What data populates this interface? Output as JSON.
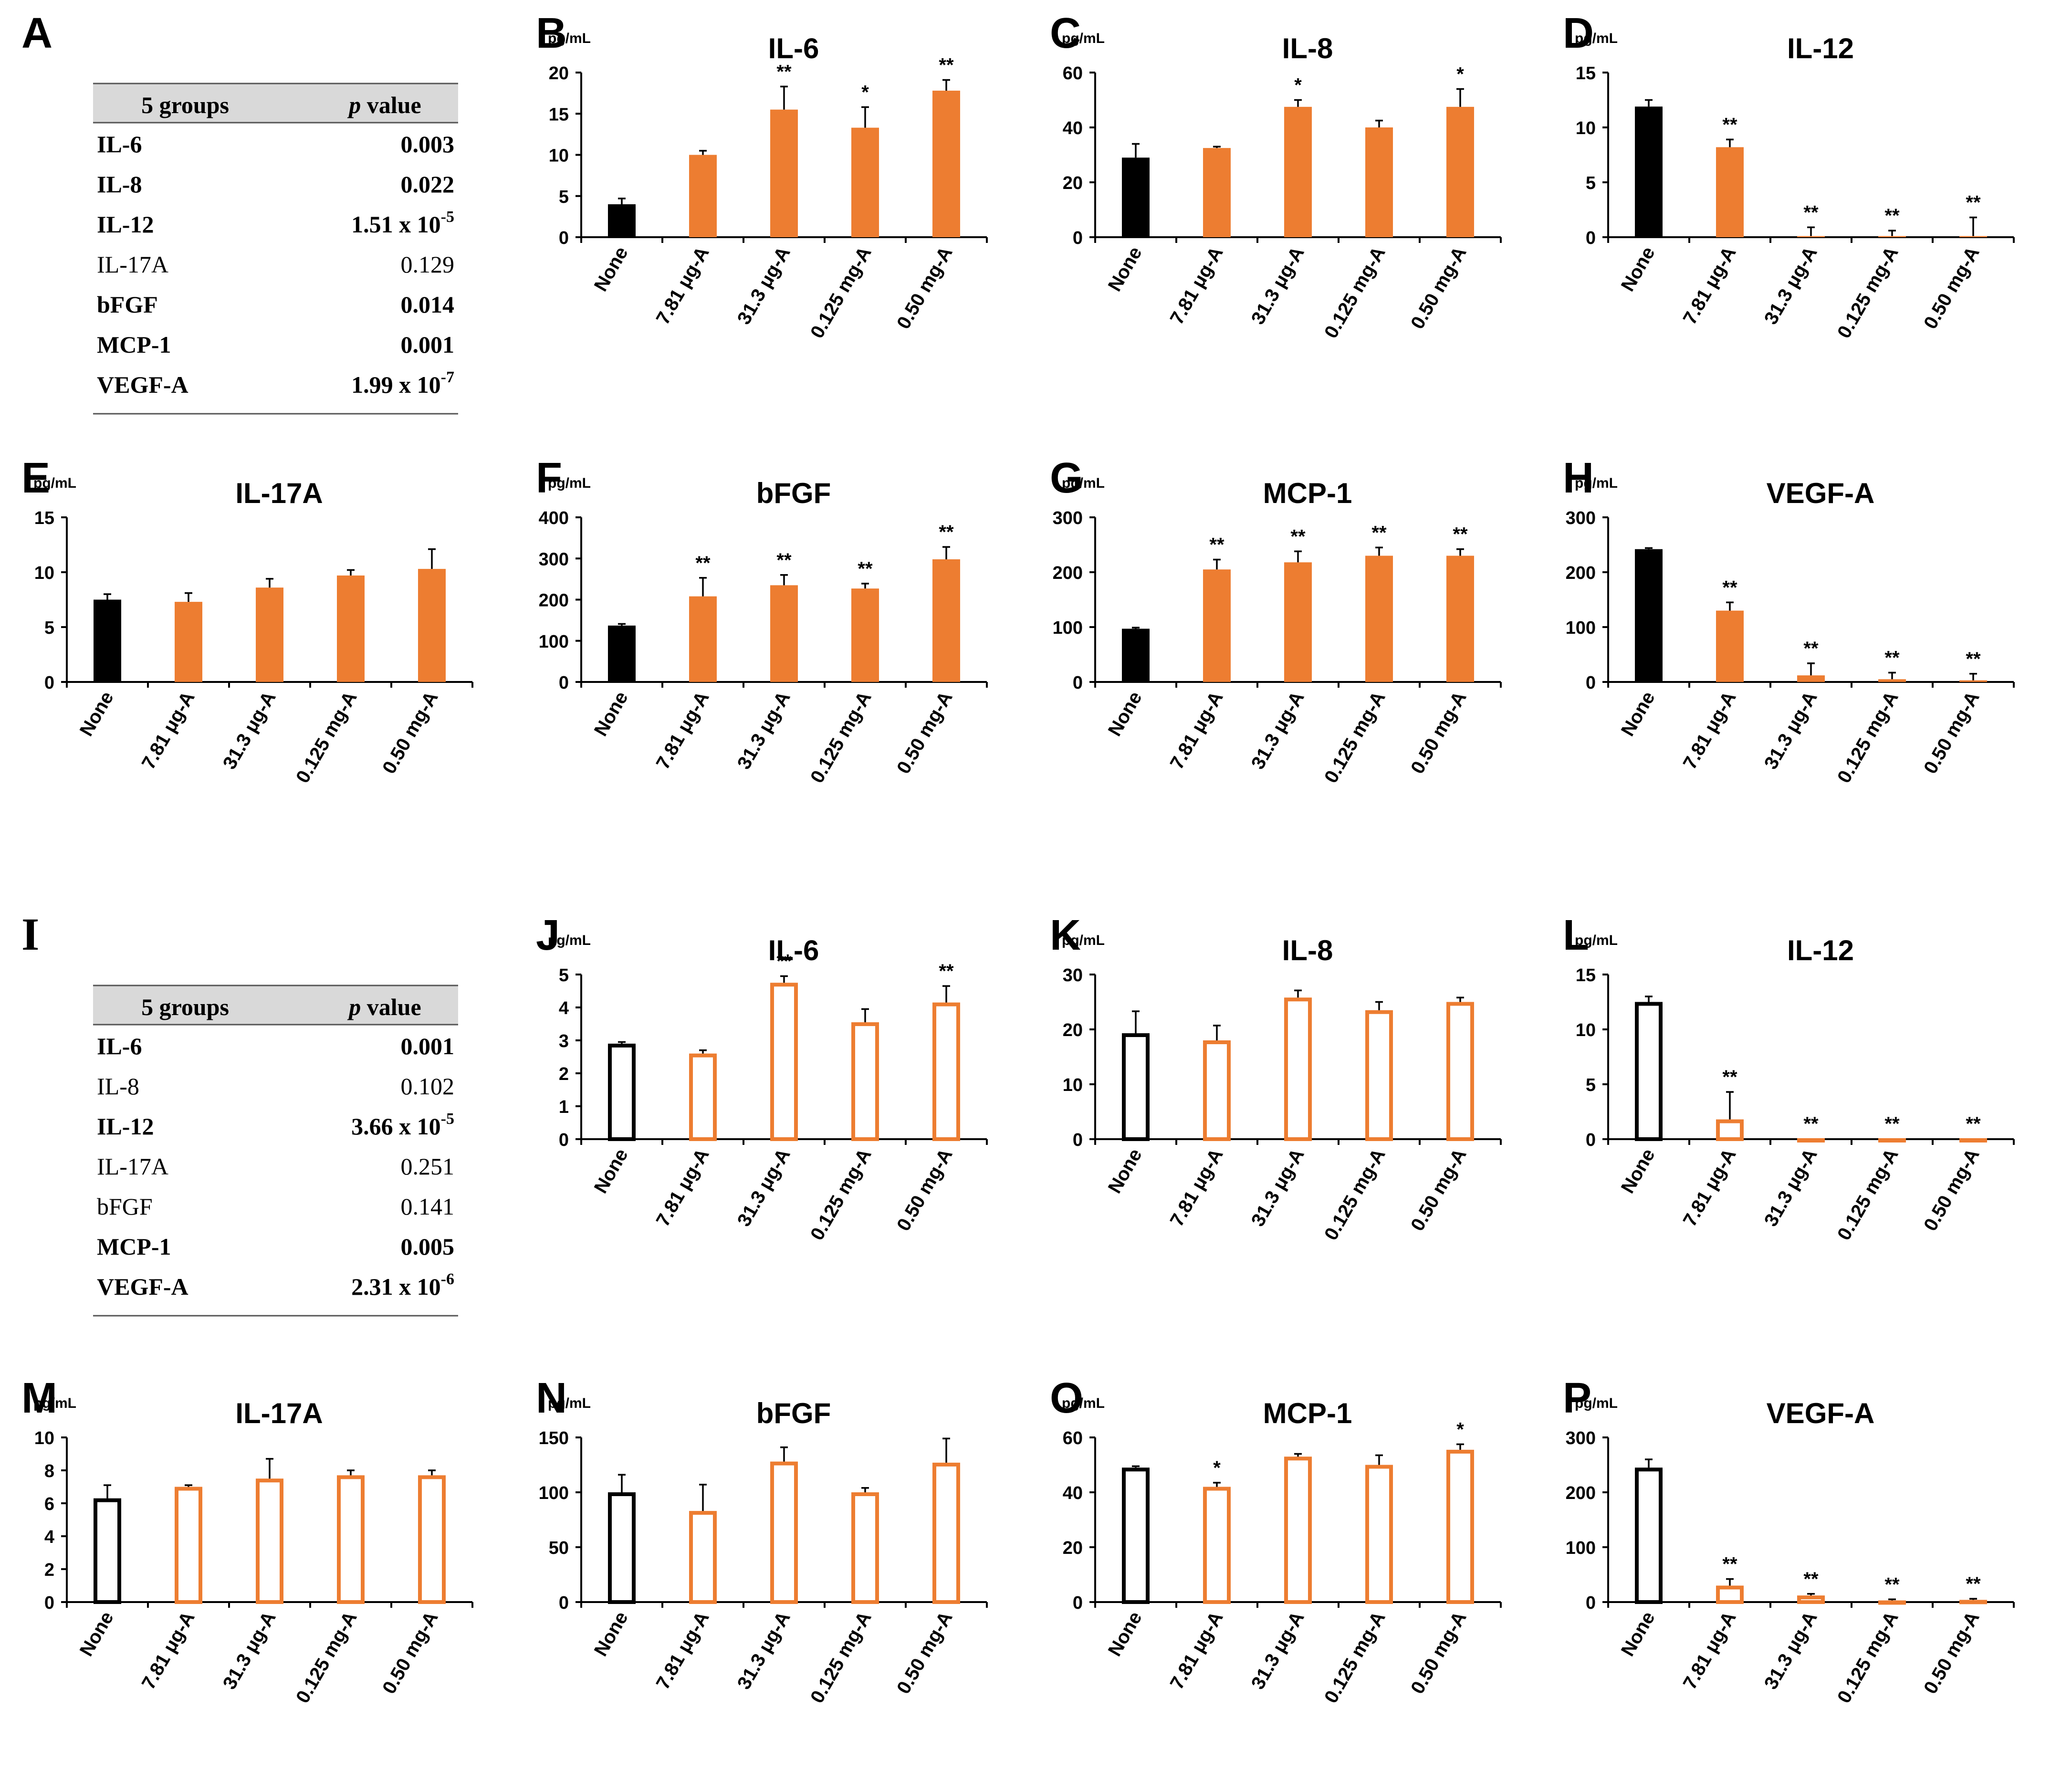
{
  "categories": [
    "None",
    "7.81 μg-A",
    "31.3 μg-A",
    "0.125 mg-A",
    "0.50 mg-A"
  ],
  "unit_label": "pg/mL",
  "colors": {
    "control": "#000000",
    "treated": "#ED7D31",
    "table_header_bg": "#D9D9D9"
  },
  "tables": [
    {
      "panel": "A",
      "header": [
        "5 groups",
        "p",
        "value"
      ],
      "rows": [
        {
          "name": "IL-6",
          "value": "0.003",
          "bold": true
        },
        {
          "name": "IL-8",
          "value": "0.022",
          "bold": true
        },
        {
          "name": "IL-12",
          "value": "1.51 x 10",
          "exp": "-5",
          "bold": true
        },
        {
          "name": "IL-17A",
          "value": "0.129",
          "bold": false
        },
        {
          "name": "bFGF",
          "value": "0.014",
          "bold": true
        },
        {
          "name": "MCP-1",
          "value": "0.001",
          "bold": true
        },
        {
          "name": "VEGF-A",
          "value": "1.99 x 10",
          "exp": "-7",
          "bold": true
        }
      ]
    },
    {
      "panel": "I",
      "header": [
        "5 groups",
        "p",
        "value"
      ],
      "rows": [
        {
          "name": "IL-6",
          "value": "0.001",
          "bold": true
        },
        {
          "name": "IL-8",
          "value": "0.102",
          "bold": false
        },
        {
          "name": "IL-12",
          "value": "3.66 x 10",
          "exp": "-5",
          "bold": true
        },
        {
          "name": "IL-17A",
          "value": "0.251",
          "bold": false
        },
        {
          "name": "bFGF",
          "value": "0.141",
          "bold": false
        },
        {
          "name": "MCP-1",
          "value": "0.005",
          "bold": true
        },
        {
          "name": "VEGF-A",
          "value": "2.31 x 10",
          "exp": "-6",
          "bold": true
        }
      ]
    }
  ],
  "chart_data": [
    {
      "panel": "B",
      "type": "bar",
      "title": "IL-6",
      "ylabel": "pg/mL",
      "ylim": [
        0,
        20
      ],
      "ticks": [
        0,
        5,
        10,
        15,
        20
      ],
      "fill": "solid",
      "categories": [
        "None",
        "7.81 μg-A",
        "31.3 μg-A",
        "0.125 mg-A",
        "0.50 mg-A"
      ],
      "values": [
        4,
        10,
        15.5,
        13.3,
        17.8
      ],
      "errors": [
        0.7,
        0.5,
        2.8,
        2.5,
        1.3
      ],
      "sig": [
        "",
        "",
        "**",
        "*",
        "**"
      ]
    },
    {
      "panel": "C",
      "type": "bar",
      "title": "IL-8",
      "ylabel": "pg/mL",
      "ylim": [
        0,
        60
      ],
      "ticks": [
        0,
        20,
        40,
        60
      ],
      "fill": "solid",
      "categories": [
        "None",
        "7.81 μg-A",
        "31.3 μg-A",
        "0.125 mg-A",
        "0.50 mg-A"
      ],
      "values": [
        29,
        32.5,
        47.5,
        40,
        47.5
      ],
      "errors": [
        5,
        0.5,
        2.5,
        2.5,
        6.5
      ],
      "sig": [
        "",
        "",
        "*",
        "",
        "*"
      ]
    },
    {
      "panel": "D",
      "type": "bar",
      "title": "IL-12",
      "ylabel": "pg/mL",
      "ylim": [
        0,
        15
      ],
      "ticks": [
        0,
        5,
        10,
        15
      ],
      "fill": "solid",
      "categories": [
        "None",
        "7.81 μg-A",
        "31.3 μg-A",
        "0.125 mg-A",
        "0.50 mg-A"
      ],
      "values": [
        11.9,
        8.2,
        0.1,
        0.1,
        0.1
      ],
      "errors": [
        0.6,
        0.7,
        0.8,
        0.5,
        1.7
      ],
      "sig": [
        "",
        "**",
        "**",
        "**",
        "**"
      ]
    },
    {
      "panel": "E",
      "type": "bar",
      "title": "IL-17A",
      "ylabel": "pg/mL",
      "ylim": [
        0,
        15
      ],
      "ticks": [
        0,
        5,
        10,
        15
      ],
      "fill": "solid",
      "categories": [
        "None",
        "7.81 μg-A",
        "31.3 μg-A",
        "0.125 mg-A",
        "0.50 mg-A"
      ],
      "values": [
        7.5,
        7.3,
        8.6,
        9.7,
        10.3
      ],
      "errors": [
        0.5,
        0.8,
        0.8,
        0.5,
        1.8
      ],
      "sig": [
        "",
        "",
        "",
        "",
        ""
      ]
    },
    {
      "panel": "F",
      "type": "bar",
      "title": "bFGF",
      "ylabel": "pg/mL",
      "ylim": [
        0,
        400
      ],
      "ticks": [
        0,
        100,
        200,
        300,
        400
      ],
      "fill": "solid",
      "categories": [
        "None",
        "7.81 μg-A",
        "31.3 μg-A",
        "0.125 mg-A",
        "0.50 mg-A"
      ],
      "values": [
        137,
        208,
        235,
        227,
        298
      ],
      "errors": [
        4,
        45,
        25,
        12,
        30
      ],
      "sig": [
        "",
        "**",
        "**",
        "**",
        "**"
      ]
    },
    {
      "panel": "G",
      "type": "bar",
      "title": "MCP-1",
      "ylabel": "pg/mL",
      "ylim": [
        0,
        300
      ],
      "ticks": [
        0,
        100,
        200,
        300
      ],
      "fill": "solid",
      "categories": [
        "None",
        "7.81 μg-A",
        "31.3 μg-A",
        "0.125 mg-A",
        "0.50 mg-A"
      ],
      "values": [
        97,
        205,
        218,
        230,
        230
      ],
      "errors": [
        2,
        18,
        20,
        15,
        12
      ],
      "sig": [
        "",
        "**",
        "**",
        "**",
        "**"
      ]
    },
    {
      "panel": "H",
      "type": "bar",
      "title": "VEGF-A",
      "ylabel": "pg/mL",
      "ylim": [
        0,
        300
      ],
      "ticks": [
        0,
        100,
        200,
        300
      ],
      "fill": "solid",
      "categories": [
        "None",
        "7.81 μg-A",
        "31.3 μg-A",
        "0.125 mg-A",
        "0.50 mg-A"
      ],
      "values": [
        242,
        130,
        12,
        5,
        3
      ],
      "errors": [
        2,
        15,
        22,
        12,
        12
      ],
      "sig": [
        "",
        "**",
        "**",
        "**",
        "**"
      ]
    },
    {
      "panel": "J",
      "type": "bar",
      "title": "IL-6",
      "ylabel": "pg/mL",
      "ylim": [
        0,
        5
      ],
      "ticks": [
        0,
        1,
        2,
        3,
        4,
        5
      ],
      "fill": "outline",
      "categories": [
        "None",
        "7.81 μg-A",
        "31.3 μg-A",
        "0.125 mg-A",
        "0.50 mg-A"
      ],
      "values": [
        2.9,
        2.6,
        4.75,
        3.55,
        4.15
      ],
      "errors": [
        0.05,
        0.1,
        0.2,
        0.4,
        0.5
      ],
      "sig": [
        "",
        "",
        "**",
        "",
        "**"
      ]
    },
    {
      "panel": "K",
      "type": "bar",
      "title": "IL-8",
      "ylabel": "pg/mL",
      "ylim": [
        0,
        30
      ],
      "ticks": [
        0,
        10,
        20,
        30
      ],
      "fill": "outline",
      "categories": [
        "None",
        "7.81 μg-A",
        "31.3 μg-A",
        "0.125 mg-A",
        "0.50 mg-A"
      ],
      "values": [
        19.3,
        18,
        25.8,
        23.5,
        25
      ],
      "errors": [
        4,
        2.7,
        1.3,
        1.5,
        0.8
      ],
      "sig": [
        "",
        "",
        "",
        "",
        ""
      ]
    },
    {
      "panel": "L",
      "type": "bar",
      "title": "IL-12",
      "ylabel": "pg/mL",
      "ylim": [
        0,
        15
      ],
      "ticks": [
        0,
        5,
        10,
        15
      ],
      "fill": "outline",
      "categories": [
        "None",
        "7.81 μg-A",
        "31.3 μg-A",
        "0.125 mg-A",
        "0.50 mg-A"
      ],
      "values": [
        12.5,
        1.8,
        0.05,
        0.05,
        0.05
      ],
      "errors": [
        0.5,
        2.5,
        0,
        0,
        0
      ],
      "sig": [
        "",
        "**",
        "**",
        "**",
        "**"
      ]
    },
    {
      "panel": "M",
      "type": "bar",
      "title": "IL-17A",
      "ylabel": "pg/mL",
      "ylim": [
        0,
        10
      ],
      "ticks": [
        0,
        2,
        4,
        6,
        8,
        10
      ],
      "fill": "outline",
      "categories": [
        "None",
        "7.81 μg-A",
        "31.3 μg-A",
        "0.125 mg-A",
        "0.50 mg-A"
      ],
      "values": [
        6.3,
        7.0,
        7.5,
        7.7,
        7.7
      ],
      "errors": [
        0.8,
        0.1,
        1.2,
        0.3,
        0.3
      ],
      "sig": [
        "",
        "",
        "",
        "",
        ""
      ]
    },
    {
      "panel": "N",
      "type": "bar",
      "title": "bFGF",
      "ylabel": "pg/mL",
      "ylim": [
        0,
        150
      ],
      "ticks": [
        0,
        50,
        100,
        150
      ],
      "fill": "outline",
      "categories": [
        "None",
        "7.81 μg-A",
        "31.3 μg-A",
        "0.125 mg-A",
        "0.50 mg-A"
      ],
      "values": [
        100,
        83,
        128,
        100,
        127
      ],
      "errors": [
        16,
        24,
        13,
        4,
        22
      ],
      "sig": [
        "",
        "",
        "",
        "",
        ""
      ]
    },
    {
      "panel": "O",
      "type": "bar",
      "title": "MCP-1",
      "ylabel": "pg/mL",
      "ylim": [
        0,
        60
      ],
      "ticks": [
        0,
        20,
        40,
        60
      ],
      "fill": "outline",
      "categories": [
        "None",
        "7.81 μg-A",
        "31.3 μg-A",
        "0.125 mg-A",
        "0.50 mg-A"
      ],
      "values": [
        49,
        42,
        53,
        50,
        55.5
      ],
      "errors": [
        0.5,
        1.5,
        1,
        3.5,
        2
      ],
      "sig": [
        "",
        "*",
        "",
        "",
        "*"
      ]
    },
    {
      "panel": "P",
      "type": "bar",
      "title": "VEGF-A",
      "ylabel": "pg/mL",
      "ylim": [
        0,
        300
      ],
      "ticks": [
        0,
        100,
        200,
        300
      ],
      "fill": "outline",
      "categories": [
        "None",
        "7.81 μg-A",
        "31.3 μg-A",
        "0.125 mg-A",
        "0.50 mg-A"
      ],
      "values": [
        245,
        30,
        12,
        3,
        4
      ],
      "errors": [
        15,
        12,
        3,
        2,
        2
      ],
      "sig": [
        "",
        "**",
        "**",
        "**",
        "**"
      ]
    }
  ]
}
